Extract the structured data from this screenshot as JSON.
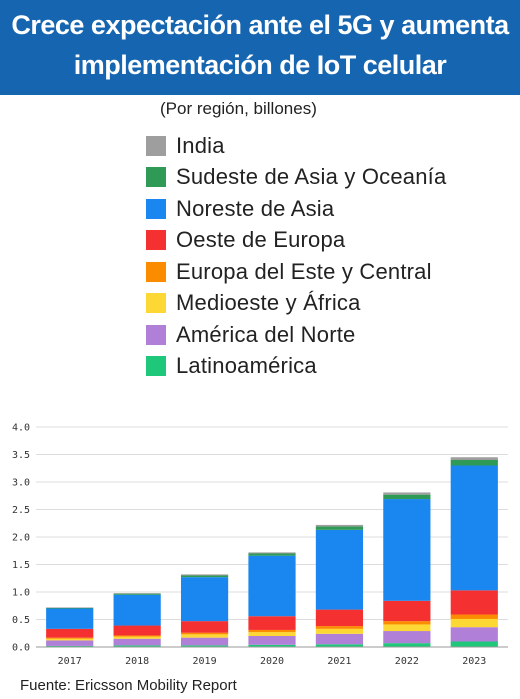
{
  "header": {
    "line1": "Crece expectación ante el 5G y aumenta",
    "line2": "implementación de IoT celular"
  },
  "subtitle": "(Por región, billones)",
  "source": "Fuente: Ericsson Mobility Report",
  "chart_data": {
    "type": "bar",
    "stacked": true,
    "categories": [
      "2017",
      "2018",
      "2019",
      "2020",
      "2021",
      "2022",
      "2023"
    ],
    "ylim": [
      0,
      4.0
    ],
    "yticks": [
      "0.0",
      "0.5",
      "1.0",
      "1.5",
      "2.0",
      "2.5",
      "3.0",
      "3.5",
      "4.0"
    ],
    "grid": true,
    "legend_position": "top",
    "series": [
      {
        "name": "Latinoamérica",
        "color": "#1fc77a",
        "values": [
          0.02,
          0.03,
          0.03,
          0.04,
          0.05,
          0.07,
          0.1
        ]
      },
      {
        "name": "América del Norte",
        "color": "#b07fd8",
        "values": [
          0.1,
          0.12,
          0.14,
          0.16,
          0.19,
          0.22,
          0.26
        ]
      },
      {
        "name": "Medioeste y África",
        "color": "#fdd835",
        "values": [
          0.03,
          0.04,
          0.06,
          0.07,
          0.09,
          0.12,
          0.15
        ]
      },
      {
        "name": "Europa del Este y Central",
        "color": "#fb8c00",
        "values": [
          0.02,
          0.02,
          0.03,
          0.04,
          0.05,
          0.06,
          0.08
        ]
      },
      {
        "name": "Oeste de Europa",
        "color": "#f53030",
        "values": [
          0.16,
          0.18,
          0.21,
          0.25,
          0.3,
          0.37,
          0.44
        ]
      },
      {
        "name": "Noreste de Asia",
        "color": "#1a87f0",
        "values": [
          0.37,
          0.56,
          0.8,
          1.1,
          1.45,
          1.85,
          2.27
        ]
      },
      {
        "name": "Sudeste de Asia y Oceanía",
        "color": "#2e9a55",
        "values": [
          0.01,
          0.02,
          0.03,
          0.04,
          0.06,
          0.08,
          0.1
        ]
      },
      {
        "name": "India",
        "color": "#9e9e9e",
        "values": [
          0.01,
          0.01,
          0.02,
          0.02,
          0.03,
          0.04,
          0.05
        ]
      }
    ]
  }
}
